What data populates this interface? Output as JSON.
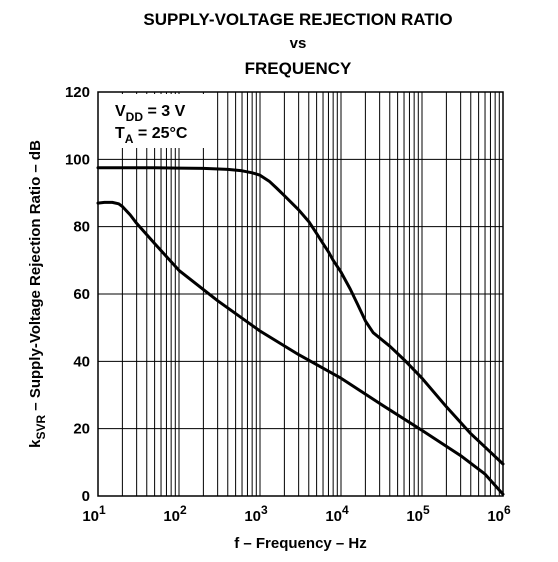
{
  "title": {
    "line1": "SUPPLY-VOLTAGE REJECTION RATIO",
    "line2": "vs",
    "line3": "FREQUENCY"
  },
  "chart_data": {
    "type": "line",
    "xlabel": "f – Frequency – Hz",
    "ylabel": "k_SVR – Supply-Voltage Rejection Ratio – dB",
    "xscale": "log",
    "xlim": [
      10,
      1000000
    ],
    "ylim": [
      0,
      120
    ],
    "x_ticks": [
      {
        "base": "10",
        "exp": "1",
        "value": 10
      },
      {
        "base": "10",
        "exp": "2",
        "value": 100
      },
      {
        "base": "10",
        "exp": "3",
        "value": 1000
      },
      {
        "base": "10",
        "exp": "4",
        "value": 10000
      },
      {
        "base": "10",
        "exp": "5",
        "value": 100000
      },
      {
        "base": "10",
        "exp": "6",
        "value": 1000000
      }
    ],
    "y_ticks": [
      0,
      20,
      40,
      60,
      80,
      100,
      120
    ],
    "grid": true,
    "annotation": {
      "line1_main": "V",
      "line1_sub": "DD",
      "line1_rest": " = 3 V",
      "line2_main": "T",
      "line2_sub": "A",
      "line2_rest": " = 25°C"
    },
    "series": [
      {
        "x": [
          10,
          50,
          100,
          200,
          400,
          600,
          800,
          1000,
          1300,
          1600,
          2000,
          3000,
          4000,
          5000,
          6000,
          7000,
          8000,
          10000,
          13000,
          16000,
          20000,
          25000,
          40000,
          60000,
          100000,
          200000,
          400000,
          700000,
          1000000
        ],
        "y": [
          97.5,
          97.5,
          97.4,
          97.3,
          97.0,
          96.6,
          96.0,
          95.3,
          93.5,
          91.5,
          89.2,
          85.0,
          81.5,
          78.0,
          75.0,
          72.5,
          70.0,
          66.5,
          61.5,
          57.0,
          52.0,
          48.5,
          44.5,
          40.5,
          35.0,
          26.5,
          18.5,
          13.0,
          9.5
        ]
      },
      {
        "x": [
          10,
          12,
          15,
          18,
          20,
          25,
          30,
          50,
          100,
          300,
          1000,
          3000,
          10000,
          30000,
          100000,
          300000,
          600000,
          1000000
        ],
        "y": [
          87.0,
          87.2,
          87.2,
          86.8,
          86.0,
          83.5,
          81.0,
          75.0,
          67.0,
          58.0,
          49.0,
          42.0,
          35.0,
          27.5,
          19.5,
          12.0,
          6.5,
          0.5
        ]
      }
    ]
  }
}
